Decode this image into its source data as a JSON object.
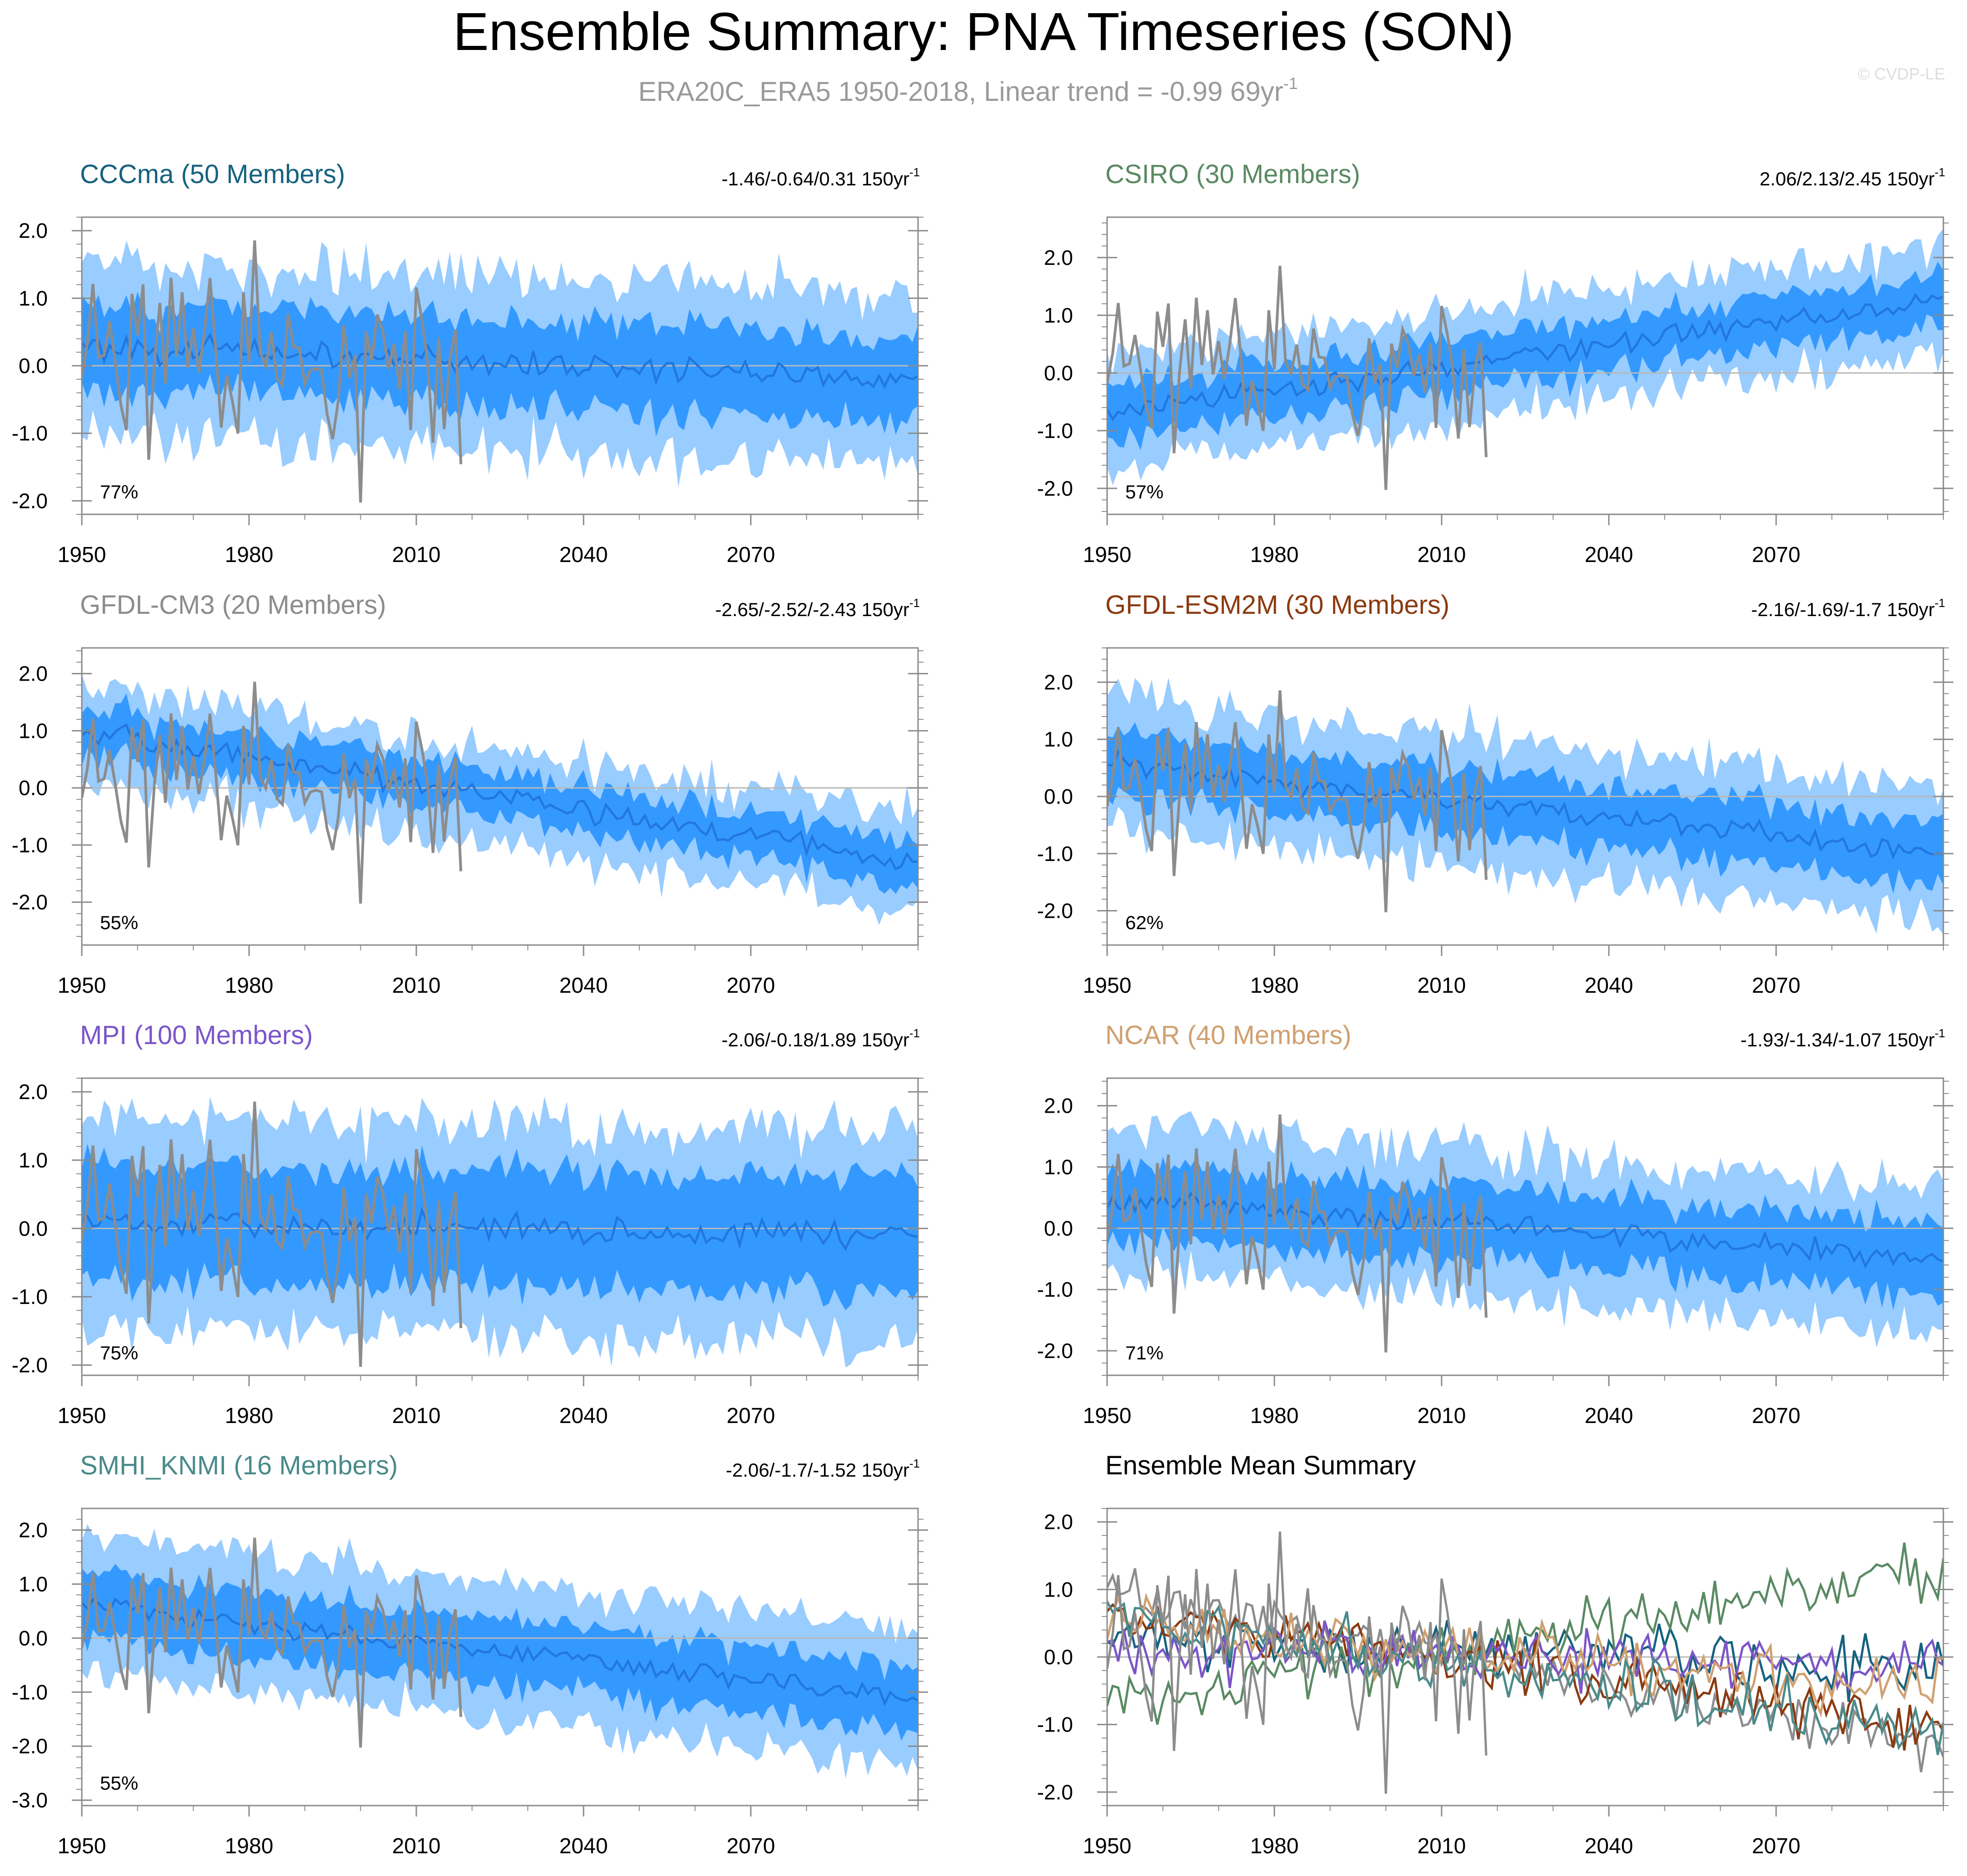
{
  "title": "Ensemble Summary: PNA Timeseries (SON)",
  "subtitle": "ERA20C_ERA5 1950-2018, Linear trend = -0.99 69yr",
  "subtitle_sup": "-1",
  "watermark": "© CVDP-LE",
  "trend_unit": "150yr",
  "trend_unit_sup": "-1",
  "obs_series_name": "ERA20C_ERA5 observations",
  "colors": {
    "outer_band": "#99ccff",
    "inner_band": "#3399ff",
    "mean_line": "#2277dd",
    "obs": "#8c8c8c",
    "axis": "#8a8a8a",
    "zero_line": "#b8b8b8"
  },
  "chart_data": [
    {
      "type": "line",
      "title": "CCCma (50 Members)",
      "title_color": "#166280",
      "trend_range": "-1.46/-0.64/0.31",
      "percent": "77%",
      "ylim": [
        -2.2,
        2.2
      ],
      "yticks": [
        2.0,
        1.0,
        0.0,
        -1.0,
        -2.0
      ],
      "ytick_labels": [
        "2.0",
        "1.0",
        "0.0",
        "-1.0",
        "-2.0"
      ],
      "xlim": [
        1950,
        2100
      ],
      "xticks": [
        1950,
        1980,
        2010,
        2040,
        2070
      ],
      "xtick_labels": [
        "1950",
        "1980",
        "2010",
        "2040",
        "2070"
      ],
      "ensemble_mean_start": 0.3,
      "ensemble_mean_end": -0.2,
      "inner_halfwidth": 0.65,
      "outer_halfwidth": 1.3
    },
    {
      "type": "line",
      "title": "CSIRO (30 Members)",
      "title_color": "#5a8a63",
      "trend_range": "2.06/2.13/2.45",
      "percent": "57%",
      "ylim": [
        -2.45,
        2.7
      ],
      "yticks": [
        2.0,
        1.0,
        0.0,
        -1.0,
        -2.0
      ],
      "ytick_labels": [
        "2.0",
        "1.0",
        "0.0",
        "-1.0",
        "-2.0"
      ],
      "xlim": [
        1950,
        2100
      ],
      "xticks": [
        1950,
        1980,
        2010,
        2040,
        2070
      ],
      "xtick_labels": [
        "1950",
        "1980",
        "2010",
        "2040",
        "2070"
      ],
      "ensemble_mean_start": -0.7,
      "ensemble_mean_end": 1.3,
      "inner_halfwidth": 0.45,
      "outer_halfwidth": 0.95
    },
    {
      "type": "line",
      "title": "GFDL-CM3 (20 Members)",
      "title_color": "#8c8c8c",
      "trend_range": "-2.65/-2.52/-2.43",
      "percent": "55%",
      "ylim": [
        -2.75,
        2.45
      ],
      "yticks": [
        2.0,
        1.0,
        0.0,
        -1.0,
        -2.0
      ],
      "ytick_labels": [
        "2.0",
        "1.0",
        "0.0",
        "-1.0",
        "-2.0"
      ],
      "xlim": [
        1950,
        2100
      ],
      "xticks": [
        1950,
        1980,
        2010,
        2040,
        2070
      ],
      "xtick_labels": [
        "1950",
        "1980",
        "2010",
        "2040",
        "2070"
      ],
      "ensemble_mean_start": 1.0,
      "ensemble_mean_end": -1.3,
      "inner_halfwidth": 0.4,
      "outer_halfwidth": 0.85
    },
    {
      "type": "line",
      "title": "GFDL-ESM2M (30 Members)",
      "title_color": "#8b3a10",
      "trend_range": "-2.16/-1.69/-1.7",
      "percent": "62%",
      "ylim": [
        -2.6,
        2.6
      ],
      "yticks": [
        2.0,
        1.0,
        0.0,
        -1.0,
        -2.0
      ],
      "ytick_labels": [
        "2.0",
        "1.0",
        "0.0",
        "-1.0",
        "-2.0"
      ],
      "xlim": [
        1950,
        2100
      ],
      "xticks": [
        1950,
        1980,
        2010,
        2040,
        2070
      ],
      "xtick_labels": [
        "1950",
        "1980",
        "2010",
        "2040",
        "2070"
      ],
      "ensemble_mean_start": 0.6,
      "ensemble_mean_end": -1.0,
      "inner_halfwidth": 0.55,
      "outer_halfwidth": 1.15
    },
    {
      "type": "line",
      "title": "MPI (100 Members)",
      "title_color": "#7b55c8",
      "trend_range": "-2.06/-0.18/1.89",
      "percent": "75%",
      "ylim": [
        -2.15,
        2.2
      ],
      "yticks": [
        2.0,
        1.0,
        0.0,
        -1.0,
        -2.0
      ],
      "ytick_labels": [
        "2.0",
        "1.0",
        "0.0",
        "-1.0",
        "-2.0"
      ],
      "xlim": [
        1950,
        2100
      ],
      "xticks": [
        1950,
        1980,
        2010,
        2040,
        2070
      ],
      "xtick_labels": [
        "1950",
        "1980",
        "2010",
        "2040",
        "2070"
      ],
      "ensemble_mean_start": 0.1,
      "ensemble_mean_end": -0.1,
      "inner_halfwidth": 0.85,
      "outer_halfwidth": 1.55
    },
    {
      "type": "line",
      "title": "NCAR (40 Members)",
      "title_color": "#d0a070",
      "trend_range": "-1.93/-1.34/-1.07",
      "percent": "71%",
      "ylim": [
        -2.4,
        2.45
      ],
      "yticks": [
        2.0,
        1.0,
        0.0,
        -1.0,
        -2.0
      ],
      "ytick_labels": [
        "2.0",
        "1.0",
        "0.0",
        "-1.0",
        "-2.0"
      ],
      "xlim": [
        1950,
        2100
      ],
      "xticks": [
        1950,
        1980,
        2010,
        2040,
        2070
      ],
      "xtick_labels": [
        "1950",
        "1980",
        "2010",
        "2040",
        "2070"
      ],
      "ensemble_mean_start": 0.5,
      "ensemble_mean_end": -0.5,
      "inner_halfwidth": 0.6,
      "outer_halfwidth": 1.2
    },
    {
      "type": "line",
      "title": "SMHI_KNMI (16 Members)",
      "title_color": "#4a8a8a",
      "trend_range": "-2.06/-1.7/-1.52",
      "percent": "55%",
      "ylim": [
        -3.1,
        2.4
      ],
      "yticks": [
        2.0,
        1.0,
        0.0,
        -1.0,
        -2.0,
        -3.0
      ],
      "ytick_labels": [
        "2.0",
        "1.0",
        "0.0",
        "-1.0",
        "-2.0",
        "-3.0"
      ],
      "xlim": [
        1950,
        2100
      ],
      "xticks": [
        1950,
        1980,
        2010,
        2040,
        2070
      ],
      "xtick_labels": [
        "1950",
        "1980",
        "2010",
        "2040",
        "2070"
      ],
      "ensemble_mean_start": 0.6,
      "ensemble_mean_end": -1.1,
      "inner_halfwidth": 0.6,
      "outer_halfwidth": 1.25
    },
    {
      "type": "line",
      "title": "Ensemble Mean Summary",
      "title_color": "#000000",
      "ylim": [
        -2.2,
        2.2
      ],
      "yticks": [
        2.0,
        1.0,
        0.0,
        -1.0,
        -2.0
      ],
      "ytick_labels": [
        "2.0",
        "1.0",
        "0.0",
        "-1.0",
        "-2.0"
      ],
      "xlim": [
        1950,
        2100
      ],
      "xticks": [
        1950,
        1980,
        2010,
        2040,
        2070
      ],
      "xtick_labels": [
        "1950",
        "1980",
        "2010",
        "2040",
        "2070"
      ],
      "series": [
        {
          "name": "CCCma",
          "color": "#166280",
          "start": 0.3,
          "end": -0.2
        },
        {
          "name": "CSIRO",
          "color": "#5a8a63",
          "start": -0.7,
          "end": 1.3
        },
        {
          "name": "GFDL-CM3",
          "color": "#8c8c8c",
          "start": 1.0,
          "end": -1.3
        },
        {
          "name": "GFDL-ESM2M",
          "color": "#8b3a10",
          "start": 0.6,
          "end": -1.0
        },
        {
          "name": "MPI",
          "color": "#7b55c8",
          "start": 0.1,
          "end": -0.1
        },
        {
          "name": "NCAR",
          "color": "#d0a070",
          "start": 0.5,
          "end": -0.5
        },
        {
          "name": "SMHI_KNMI",
          "color": "#4a8a8a",
          "start": 0.6,
          "end": -1.1
        }
      ]
    }
  ]
}
